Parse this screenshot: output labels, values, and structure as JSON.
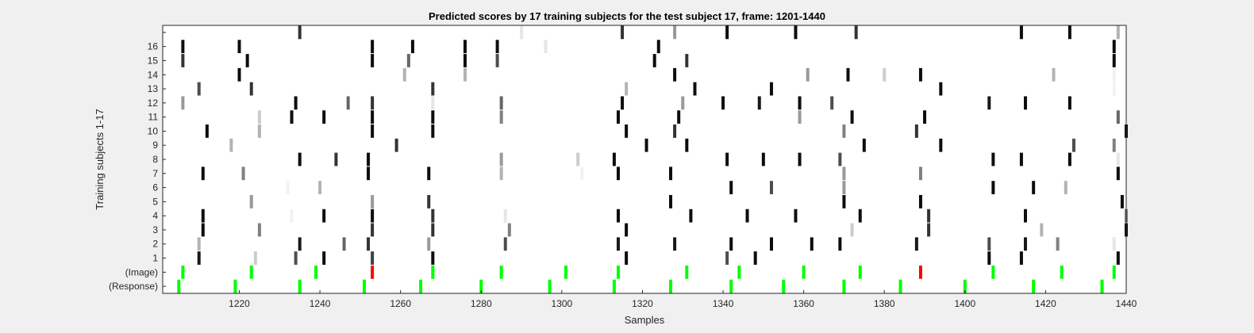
{
  "chart_data": {
    "type": "heatmap",
    "title": "Predicted scores by 17 training subjects for the test subject 17, frame: 1201-1440",
    "xlabel": "Samples",
    "ylabel": "Training subjects 1-17",
    "xlim": [
      1201,
      1440
    ],
    "xticks": [
      1220,
      1240,
      1260,
      1280,
      1300,
      1320,
      1340,
      1360,
      1380,
      1400,
      1420,
      1440
    ],
    "row_labels": [
      "(Response)",
      "(Image)",
      "1",
      "2",
      "3",
      "4",
      "5",
      "6",
      "7",
      "8",
      "9",
      "10",
      "11",
      "12",
      "13",
      "14",
      "15",
      "16",
      ""
    ],
    "grid": false,
    "colormap": "gray (white = 0, black = 1)",
    "response_color": "#00ff00",
    "image_color": "#00ff00",
    "image_mismatch_color": "#ff0000",
    "response_events": [
      1205,
      1219,
      1235,
      1251,
      1265,
      1280,
      1297,
      1313,
      1327,
      1342,
      1355,
      1370,
      1384,
      1400,
      1417,
      1434
    ],
    "image_events": [
      {
        "x": 1206,
        "match": true
      },
      {
        "x": 1223,
        "match": true
      },
      {
        "x": 1239,
        "match": true
      },
      {
        "x": 1253,
        "match": false
      },
      {
        "x": 1268,
        "match": true
      },
      {
        "x": 1285,
        "match": true
      },
      {
        "x": 1301,
        "match": true
      },
      {
        "x": 1314,
        "match": true
      },
      {
        "x": 1331,
        "match": true
      },
      {
        "x": 1344,
        "match": true
      },
      {
        "x": 1360,
        "match": true
      },
      {
        "x": 1374,
        "match": true
      },
      {
        "x": 1389,
        "match": false
      },
      {
        "x": 1407,
        "match": true
      },
      {
        "x": 1424,
        "match": true
      },
      {
        "x": 1437,
        "match": true
      }
    ],
    "subject_scores": [
      {
        "row": 1,
        "cells": [
          [
            1210,
            0.9
          ],
          [
            1224,
            0.2
          ],
          [
            1234,
            0.7
          ],
          [
            1241,
            0.95
          ],
          [
            1253,
            0.75
          ],
          [
            1268,
            0.95
          ],
          [
            1316,
            0.95
          ],
          [
            1341,
            0.7
          ],
          [
            1348,
            0.95
          ],
          [
            1406,
            0.95
          ],
          [
            1414,
            0.95
          ],
          [
            1438,
            0.95
          ]
        ]
      },
      {
        "row": 2,
        "cells": [
          [
            1210,
            0.3
          ],
          [
            1235,
            0.9
          ],
          [
            1246,
            0.6
          ],
          [
            1252,
            0.8
          ],
          [
            1267,
            0.4
          ],
          [
            1286,
            0.7
          ],
          [
            1314,
            0.9
          ],
          [
            1328,
            0.9
          ],
          [
            1342,
            0.95
          ],
          [
            1352,
            0.95
          ],
          [
            1362,
            0.95
          ],
          [
            1369,
            0.95
          ],
          [
            1388,
            0.9
          ],
          [
            1406,
            0.7
          ],
          [
            1415,
            0.9
          ],
          [
            1423,
            0.5
          ],
          [
            1437,
            0.1
          ]
        ]
      },
      {
        "row": 3,
        "cells": [
          [
            1211,
            0.95
          ],
          [
            1225,
            0.5
          ],
          [
            1253,
            0.8
          ],
          [
            1268,
            0.8
          ],
          [
            1287,
            0.5
          ],
          [
            1316,
            0.95
          ],
          [
            1372,
            0.2
          ],
          [
            1391,
            0.8
          ],
          [
            1419,
            0.3
          ],
          [
            1440,
            0.95
          ]
        ]
      },
      {
        "row": 4,
        "cells": [
          [
            1211,
            0.95
          ],
          [
            1233,
            0.05
          ],
          [
            1241,
            0.95
          ],
          [
            1253,
            0.95
          ],
          [
            1268,
            0.8
          ],
          [
            1286,
            0.1
          ],
          [
            1314,
            0.95
          ],
          [
            1332,
            0.95
          ],
          [
            1346,
            0.95
          ],
          [
            1358,
            0.95
          ],
          [
            1374,
            0.95
          ],
          [
            1391,
            0.8
          ],
          [
            1415,
            0.95
          ],
          [
            1440,
            0.5
          ]
        ]
      },
      {
        "row": 5,
        "cells": [
          [
            1223,
            0.4
          ],
          [
            1253,
            0.4
          ],
          [
            1267,
            0.8
          ],
          [
            1327,
            0.95
          ],
          [
            1370,
            0.95
          ],
          [
            1389,
            0.95
          ],
          [
            1439,
            0.95
          ]
        ]
      },
      {
        "row": 6,
        "cells": [
          [
            1232,
            0.05
          ],
          [
            1240,
            0.3
          ],
          [
            1342,
            0.95
          ],
          [
            1352,
            0.7
          ],
          [
            1370,
            0.4
          ],
          [
            1407,
            0.95
          ],
          [
            1417,
            0.95
          ],
          [
            1425,
            0.3
          ]
        ]
      },
      {
        "row": 7,
        "cells": [
          [
            1211,
            0.95
          ],
          [
            1221,
            0.5
          ],
          [
            1252,
            0.95
          ],
          [
            1267,
            0.95
          ],
          [
            1285,
            0.3
          ],
          [
            1305,
            0.05
          ],
          [
            1314,
            0.95
          ],
          [
            1327,
            0.95
          ],
          [
            1370,
            0.4
          ],
          [
            1389,
            0.5
          ],
          [
            1438,
            0.95
          ]
        ]
      },
      {
        "row": 8,
        "cells": [
          [
            1235,
            0.95
          ],
          [
            1244,
            0.8
          ],
          [
            1252,
            0.95
          ],
          [
            1285,
            0.4
          ],
          [
            1304,
            0.2
          ],
          [
            1313,
            0.95
          ],
          [
            1341,
            0.95
          ],
          [
            1350,
            0.95
          ],
          [
            1359,
            0.95
          ],
          [
            1369,
            0.7
          ],
          [
            1407,
            0.95
          ],
          [
            1414,
            0.95
          ],
          [
            1426,
            0.95
          ],
          [
            1438,
            0.1
          ]
        ]
      },
      {
        "row": 9,
        "cells": [
          [
            1218,
            0.3
          ],
          [
            1259,
            0.8
          ],
          [
            1321,
            0.95
          ],
          [
            1331,
            0.95
          ],
          [
            1375,
            0.95
          ],
          [
            1394,
            0.95
          ],
          [
            1427,
            0.7
          ],
          [
            1437,
            0.5
          ]
        ]
      },
      {
        "row": 10,
        "cells": [
          [
            1212,
            0.95
          ],
          [
            1225,
            0.3
          ],
          [
            1253,
            0.95
          ],
          [
            1268,
            0.95
          ],
          [
            1316,
            0.95
          ],
          [
            1328,
            0.8
          ],
          [
            1370,
            0.5
          ],
          [
            1388,
            0.8
          ],
          [
            1440,
            0.95
          ]
        ]
      },
      {
        "row": 11,
        "cells": [
          [
            1225,
            0.2
          ],
          [
            1233,
            0.95
          ],
          [
            1241,
            0.95
          ],
          [
            1253,
            0.95
          ],
          [
            1268,
            0.95
          ],
          [
            1285,
            0.5
          ],
          [
            1314,
            0.95
          ],
          [
            1329,
            0.95
          ],
          [
            1359,
            0.4
          ],
          [
            1372,
            0.95
          ],
          [
            1390,
            0.95
          ],
          [
            1438,
            0.6
          ]
        ]
      },
      {
        "row": 12,
        "cells": [
          [
            1206,
            0.4
          ],
          [
            1234,
            0.95
          ],
          [
            1247,
            0.6
          ],
          [
            1253,
            0.8
          ],
          [
            1268,
            0.1
          ],
          [
            1285,
            0.6
          ],
          [
            1315,
            0.95
          ],
          [
            1330,
            0.4
          ],
          [
            1340,
            0.95
          ],
          [
            1349,
            0.9
          ],
          [
            1359,
            0.95
          ],
          [
            1367,
            0.7
          ],
          [
            1406,
            0.9
          ],
          [
            1415,
            0.95
          ],
          [
            1426,
            0.95
          ]
        ]
      },
      {
        "row": 13,
        "cells": [
          [
            1210,
            0.7
          ],
          [
            1223,
            0.8
          ],
          [
            1268,
            0.8
          ],
          [
            1316,
            0.3
          ],
          [
            1333,
            0.95
          ],
          [
            1352,
            0.95
          ],
          [
            1394,
            0.95
          ],
          [
            1437,
            0.05
          ]
        ]
      },
      {
        "row": 14,
        "cells": [
          [
            1220,
            0.95
          ],
          [
            1261,
            0.3
          ],
          [
            1276,
            0.3
          ],
          [
            1328,
            0.95
          ],
          [
            1361,
            0.4
          ],
          [
            1371,
            0.95
          ],
          [
            1380,
            0.2
          ],
          [
            1389,
            0.95
          ],
          [
            1422,
            0.3
          ],
          [
            1437,
            0.05
          ]
        ]
      },
      {
        "row": 15,
        "cells": [
          [
            1206,
            0.8
          ],
          [
            1222,
            0.95
          ],
          [
            1253,
            0.95
          ],
          [
            1262,
            0.6
          ],
          [
            1276,
            0.95
          ],
          [
            1284,
            0.7
          ],
          [
            1323,
            0.95
          ],
          [
            1331,
            0.8
          ],
          [
            1437,
            0.95
          ]
        ]
      },
      {
        "row": 16,
        "cells": [
          [
            1206,
            0.95
          ],
          [
            1220,
            0.95
          ],
          [
            1253,
            0.95
          ],
          [
            1263,
            0.95
          ],
          [
            1276,
            0.95
          ],
          [
            1284,
            0.95
          ],
          [
            1296,
            0.1
          ],
          [
            1324,
            0.95
          ],
          [
            1437,
            0.95
          ]
        ]
      },
      {
        "row": 17,
        "cells": [
          [
            1235,
            0.8
          ],
          [
            1290,
            0.1
          ],
          [
            1315,
            0.8
          ],
          [
            1328,
            0.4
          ],
          [
            1341,
            0.95
          ],
          [
            1358,
            0.95
          ],
          [
            1373,
            0.8
          ],
          [
            1414,
            0.95
          ],
          [
            1426,
            0.95
          ],
          [
            1438,
            0.3
          ]
        ]
      }
    ]
  }
}
